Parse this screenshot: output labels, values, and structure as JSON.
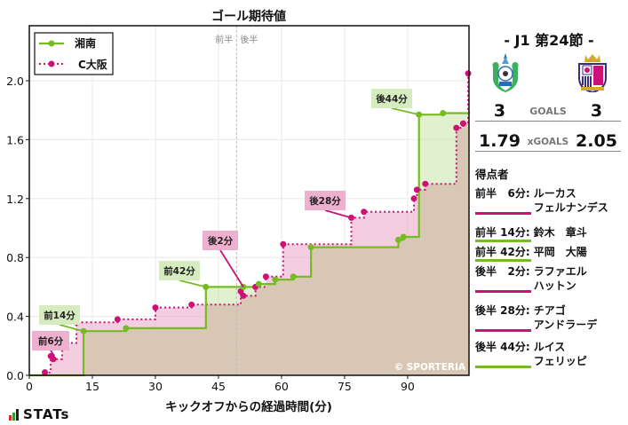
{
  "chart_data": {
    "type": "line",
    "subtype": "step",
    "title": "ゴール期待値",
    "xlabel": "キックオフからの経過時間(分)",
    "ylabel": "",
    "xlim": [
      0,
      104.6
    ],
    "ylim": [
      0,
      2.0
    ],
    "xticks": [
      0,
      15,
      30,
      45,
      60,
      75,
      90
    ],
    "yticks": [
      0.0,
      0.4,
      0.8,
      1.2,
      1.6,
      2.0
    ],
    "ytick_labels": [
      "0.0",
      "0.4",
      "0.8",
      "1.2",
      "1.6",
      "2.0"
    ],
    "grid": true,
    "halftime_x": 49.3,
    "halftime_labels": [
      "前半",
      "後半"
    ],
    "legend_position": "upper left",
    "series": [
      {
        "name": "湘南",
        "color": "#77bb22",
        "style": "solid",
        "x": [
          0,
          12.9,
          23.0,
          42.0,
          50.9,
          54.6,
          58.5,
          62.8,
          67.0,
          87.8,
          89.0,
          92.7,
          98.4,
          104.6
        ],
        "y": [
          0.0,
          0.3,
          0.32,
          0.6,
          0.6,
          0.62,
          0.65,
          0.67,
          0.87,
          0.92,
          0.94,
          1.77,
          1.78,
          1.79
        ]
      },
      {
        "name": "C大阪",
        "color": "#cc1177",
        "style": "dotted",
        "x": [
          0,
          3.7,
          5.1,
          5.7,
          7.8,
          11.2,
          21.0,
          30.0,
          38.6,
          50.3,
          50.9,
          53.8,
          56.3,
          60.4,
          76.6,
          79.6,
          91.5,
          92.2,
          94.2,
          101.6,
          103.2,
          104.4,
          104.6
        ],
        "y": [
          0.0,
          0.02,
          0.13,
          0.11,
          0.22,
          0.36,
          0.38,
          0.46,
          0.48,
          0.57,
          0.54,
          0.6,
          0.67,
          0.89,
          1.07,
          1.11,
          1.2,
          1.26,
          1.3,
          1.68,
          1.71,
          2.05,
          2.05
        ]
      }
    ],
    "annotations": [
      {
        "text": "前6分",
        "x": 6.0,
        "y": 0.13,
        "team": "C大阪"
      },
      {
        "text": "前14分",
        "x": 12.9,
        "y": 0.3,
        "team": "湘南"
      },
      {
        "text": "前42分",
        "x": 42.0,
        "y": 0.6,
        "team": "湘南"
      },
      {
        "text": "後2分",
        "x": 50.9,
        "y": 0.6,
        "team": "C大阪"
      },
      {
        "text": "後28分",
        "x": 76.6,
        "y": 1.07,
        "team": "C大阪"
      },
      {
        "text": "後44分",
        "x": 92.7,
        "y": 1.77,
        "team": "湘南"
      }
    ],
    "watermark": "© SPORTERIA"
  },
  "legend": {
    "home_label": "湘南",
    "away_label": "C大阪"
  },
  "half_labels": {
    "first": "前半",
    "second": "後半"
  },
  "match": {
    "round": "-  J1 第24節  -",
    "home_team": "湘南",
    "away_team": "C大阪",
    "goals_label": "GOALS",
    "xgoals_label": "xGOALS",
    "home_goals": "3",
    "away_goals": "3",
    "home_xg": "1.79",
    "away_xg": "2.05",
    "home_color": "#77bb22",
    "away_color": "#cc1177"
  },
  "scorers": {
    "title": "得点者",
    "items": [
      {
        "time": "前半   6分:",
        "name": "ルーカス\nフェルナンデス",
        "team": "away"
      },
      {
        "time": "前半 14分:",
        "name": "鈴木　章斗",
        "team": "home"
      },
      {
        "time": "前半 42分:",
        "name": "平岡　大陽",
        "team": "home"
      },
      {
        "time": "後半   2分:",
        "name": "ラファエル\nハットン",
        "team": "away"
      },
      {
        "time": "後半 28分:",
        "name": "チアゴ\nアンドラーデ",
        "team": "away"
      },
      {
        "time": "後半 44分:",
        "name": "ルイス\nフェリッピ",
        "team": "home"
      }
    ]
  },
  "brand": {
    "logo_text": "STATs",
    "watermark": "© SPORTERIA"
  }
}
